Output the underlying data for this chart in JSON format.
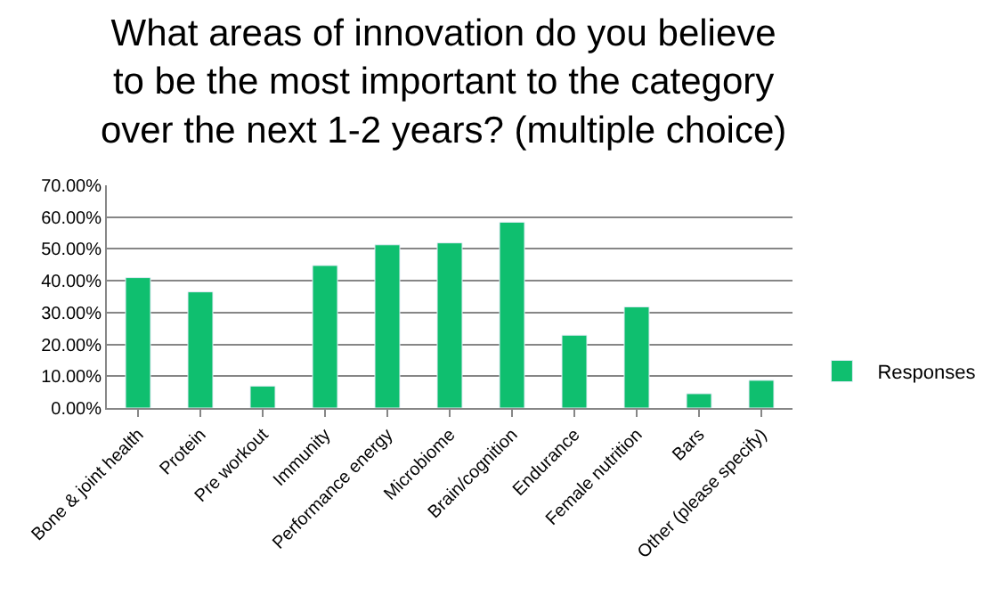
{
  "chart_data": {
    "type": "bar",
    "title": "What areas of innovation do you believe\nto be the most important to the category\nover the next 1-2 years? (multiple choice)",
    "categories": [
      "Bone & joint health",
      "Protein",
      "Pre workout",
      "Immunity",
      "Performance energy",
      "Microbiome",
      "Brain/cognition",
      "Endurance",
      "Female nutrition",
      "Bars",
      "Other (please specify)"
    ],
    "series": [
      {
        "name": "Responses",
        "color": "#0fbf6f",
        "values": [
          41.0,
          36.5,
          6.9,
          44.8,
          51.3,
          51.9,
          58.4,
          22.9,
          31.8,
          4.5,
          8.7
        ]
      }
    ],
    "ylim": [
      0,
      70
    ],
    "yticks": [
      {
        "value": 0,
        "label": "0.00%"
      },
      {
        "value": 10,
        "label": "10.00%"
      },
      {
        "value": 20,
        "label": "20.00%"
      },
      {
        "value": 30,
        "label": "30.00%"
      },
      {
        "value": 40,
        "label": "40.00%"
      },
      {
        "value": 50,
        "label": "50.00%"
      },
      {
        "value": 60,
        "label": "60.00%"
      },
      {
        "value": 70,
        "label": "70.00%"
      }
    ],
    "grid": "y",
    "legend": "right"
  }
}
